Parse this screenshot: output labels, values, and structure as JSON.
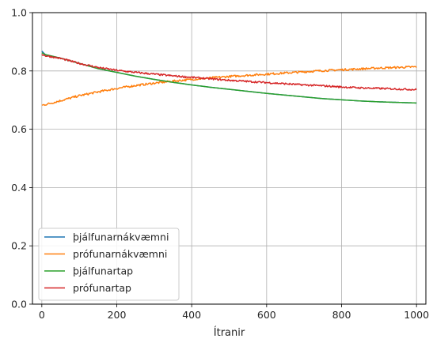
{
  "chart_data": {
    "type": "line",
    "title": "",
    "xlabel": "Ítranir",
    "ylabel": "",
    "xlim": [
      -25,
      1025
    ],
    "ylim": [
      0.0,
      1.0
    ],
    "xticks": [
      0,
      200,
      400,
      600,
      800,
      1000
    ],
    "xtick_labels": [
      "0",
      "200",
      "400",
      "600",
      "800",
      "1000"
    ],
    "yticks": [
      0.0,
      0.2,
      0.4,
      0.6,
      0.8,
      1.0
    ],
    "ytick_labels": [
      "0.0",
      "0.2",
      "0.4",
      "0.6",
      "0.8",
      "1.0"
    ],
    "grid": true,
    "legend_position": "lower-left",
    "series": [
      {
        "name": "þjálfunarnákvæmni",
        "color": "#1f77b4",
        "x": [
          0,
          10,
          20,
          50,
          100,
          150,
          200,
          250,
          300,
          350,
          400,
          450,
          500,
          550,
          600,
          650,
          700,
          750,
          800,
          850,
          900,
          950,
          1000
        ],
        "y": [
          0.868,
          0.855,
          0.853,
          0.844,
          0.826,
          0.808,
          0.795,
          0.782,
          0.771,
          0.761,
          0.752,
          0.744,
          0.737,
          0.73,
          0.723,
          0.717,
          0.711,
          0.705,
          0.701,
          0.697,
          0.694,
          0.692,
          0.69
        ]
      },
      {
        "name": "prófunarnákvæmni",
        "color": "#ff7f0e",
        "x": [
          0,
          10,
          20,
          50,
          100,
          150,
          200,
          250,
          300,
          350,
          400,
          450,
          500,
          550,
          600,
          650,
          700,
          750,
          800,
          850,
          900,
          950,
          1000
        ],
        "y": [
          0.682,
          0.685,
          0.688,
          0.698,
          0.715,
          0.728,
          0.74,
          0.75,
          0.758,
          0.765,
          0.771,
          0.776,
          0.781,
          0.785,
          0.789,
          0.793,
          0.797,
          0.801,
          0.804,
          0.807,
          0.81,
          0.812,
          0.814
        ]
      },
      {
        "name": "þjálfunartap",
        "color": "#2ca02c",
        "x": [
          0,
          10,
          20,
          50,
          100,
          150,
          200,
          250,
          300,
          350,
          400,
          450,
          500,
          550,
          600,
          650,
          700,
          750,
          800,
          850,
          900,
          950,
          1000
        ],
        "y": [
          0.862,
          0.856,
          0.853,
          0.844,
          0.826,
          0.808,
          0.795,
          0.782,
          0.771,
          0.761,
          0.752,
          0.744,
          0.737,
          0.73,
          0.723,
          0.717,
          0.711,
          0.705,
          0.701,
          0.697,
          0.694,
          0.692,
          0.69
        ]
      },
      {
        "name": "prófunartap",
        "color": "#d62728",
        "x": [
          0,
          10,
          20,
          50,
          100,
          150,
          200,
          250,
          300,
          350,
          400,
          450,
          500,
          550,
          600,
          650,
          700,
          750,
          800,
          850,
          900,
          950,
          1000
        ],
        "y": [
          0.857,
          0.852,
          0.85,
          0.843,
          0.826,
          0.812,
          0.802,
          0.795,
          0.789,
          0.783,
          0.778,
          0.773,
          0.768,
          0.764,
          0.76,
          0.756,
          0.752,
          0.749,
          0.745,
          0.742,
          0.74,
          0.738,
          0.736
        ]
      }
    ]
  }
}
